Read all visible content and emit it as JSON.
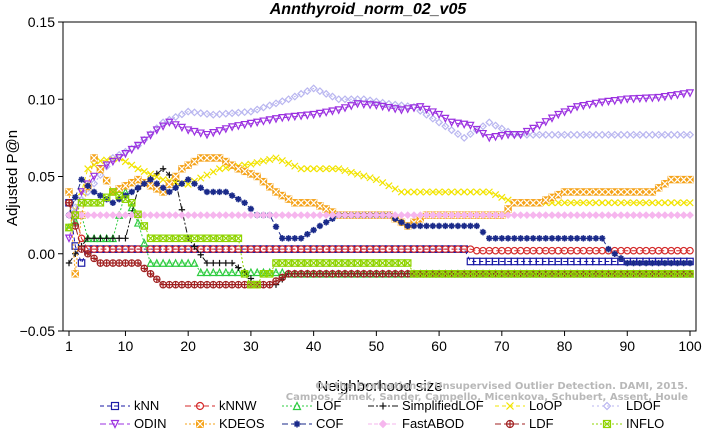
{
  "chart_data": {
    "type": "line",
    "title": "Annthyroid_norm_02_v05",
    "xlabel": "Neighborhood size",
    "ylabel": "Adjusted P@n",
    "xlim": [
      0,
      100
    ],
    "ylim": [
      -0.05,
      0.15
    ],
    "xticks": [
      1,
      10,
      20,
      30,
      40,
      50,
      60,
      70,
      80,
      90,
      100
    ],
    "yticks": [
      -0.05,
      0.0,
      0.05,
      0.1,
      0.15
    ],
    "ytick_labels": [
      "−0.05",
      "0.00",
      "0.05",
      "0.10",
      "0.15"
    ],
    "grid": false,
    "legend_position": "bottom",
    "watermark": "Campos, Zimek, Sander, Campello, Micenkova, Schubert, Assent, Houle\nOn the Evaluation of Unsupervised Outlier Detection. DAMI, 2015.",
    "series": [
      {
        "name": "kNN",
        "color": "#1a1aa6",
        "marker": "square",
        "dash": "4,3",
        "points": [
          [
            1,
            0.033
          ],
          [
            2,
            0.005
          ],
          [
            3,
            -0.006
          ],
          [
            4,
            0.003
          ],
          [
            64,
            0.003
          ],
          [
            65,
            -0.005
          ],
          [
            100,
            -0.005
          ]
        ]
      },
      {
        "name": "kNNW",
        "color": "#d42a2a",
        "marker": "circle",
        "dash": "6,3",
        "points": [
          [
            1,
            0.033
          ],
          [
            2,
            0.025
          ],
          [
            3,
            0.01
          ],
          [
            4,
            0.003
          ],
          [
            65,
            0.003
          ],
          [
            66,
            0.002
          ],
          [
            100,
            0.002
          ]
        ]
      },
      {
        "name": "LOF",
        "color": "#2ecc40",
        "marker": "triangle",
        "dash": "2,2",
        "points": [
          [
            1,
            0.017
          ],
          [
            3,
            0.025
          ],
          [
            4,
            0.01
          ],
          [
            8,
            0.01
          ],
          [
            10,
            0.04
          ],
          [
            12,
            0.02
          ],
          [
            14,
            -0.006
          ],
          [
            21,
            -0.006
          ],
          [
            22,
            -0.012
          ],
          [
            30,
            -0.012
          ],
          [
            35,
            -0.012
          ],
          [
            36,
            -0.013
          ],
          [
            88,
            -0.013
          ],
          [
            90,
            -0.013
          ],
          [
            100,
            -0.013
          ]
        ]
      },
      {
        "name": "SimplifiedLOF",
        "color": "#111111",
        "marker": "plus",
        "dash": "6,2,2,2",
        "points": [
          [
            1,
            -0.006
          ],
          [
            2,
            0.0
          ],
          [
            3,
            0.005
          ],
          [
            4,
            0.01
          ],
          [
            10,
            0.01
          ],
          [
            12,
            0.042
          ],
          [
            16,
            0.055
          ],
          [
            18,
            0.047
          ],
          [
            20,
            0.01
          ],
          [
            23,
            -0.006
          ],
          [
            27,
            -0.006
          ],
          [
            29,
            -0.012
          ],
          [
            31,
            -0.02
          ],
          [
            34,
            -0.02
          ],
          [
            36,
            -0.013
          ],
          [
            100,
            -0.013
          ]
        ]
      },
      {
        "name": "LoOP",
        "color": "#f2e400",
        "marker": "x",
        "dash": "4,3",
        "points": [
          [
            1,
            0.017
          ],
          [
            3,
            0.04
          ],
          [
            4,
            0.055
          ],
          [
            6,
            0.06
          ],
          [
            9,
            0.062
          ],
          [
            12,
            0.055
          ],
          [
            16,
            0.048
          ],
          [
            20,
            0.045
          ],
          [
            25,
            0.055
          ],
          [
            30,
            0.058
          ],
          [
            34,
            0.062
          ],
          [
            38,
            0.055
          ],
          [
            44,
            0.055
          ],
          [
            50,
            0.048
          ],
          [
            54,
            0.04
          ],
          [
            68,
            0.04
          ],
          [
            72,
            0.033
          ],
          [
            100,
            0.033
          ]
        ]
      },
      {
        "name": "LDOF",
        "color": "#b9b6f0",
        "marker": "diamond",
        "dash": "2,3",
        "points": [
          [
            1,
            0.025
          ],
          [
            4,
            0.04
          ],
          [
            8,
            0.062
          ],
          [
            12,
            0.07
          ],
          [
            16,
            0.085
          ],
          [
            20,
            0.092
          ],
          [
            24,
            0.09
          ],
          [
            30,
            0.092
          ],
          [
            36,
            0.1
          ],
          [
            40,
            0.107
          ],
          [
            44,
            0.1
          ],
          [
            48,
            0.1
          ],
          [
            52,
            0.097
          ],
          [
            56,
            0.095
          ],
          [
            60,
            0.085
          ],
          [
            64,
            0.075
          ],
          [
            68,
            0.085
          ],
          [
            72,
            0.077
          ],
          [
            80,
            0.077
          ],
          [
            90,
            0.077
          ],
          [
            100,
            0.077
          ]
        ]
      },
      {
        "name": "ODIN",
        "color": "#9b30e0",
        "marker": "triangle-down",
        "dash": "6,3",
        "points": [
          [
            1,
            0.01
          ],
          [
            3,
            0.04
          ],
          [
            6,
            0.055
          ],
          [
            9,
            0.062
          ],
          [
            12,
            0.07
          ],
          [
            15,
            0.08
          ],
          [
            17,
            0.085
          ],
          [
            20,
            0.08
          ],
          [
            23,
            0.077
          ],
          [
            27,
            0.082
          ],
          [
            31,
            0.085
          ],
          [
            35,
            0.088
          ],
          [
            40,
            0.09
          ],
          [
            44,
            0.093
          ],
          [
            47,
            0.097
          ],
          [
            50,
            0.096
          ],
          [
            54,
            0.093
          ],
          [
            57,
            0.095
          ],
          [
            60,
            0.09
          ],
          [
            62,
            0.085
          ],
          [
            65,
            0.083
          ],
          [
            68,
            0.075
          ],
          [
            71,
            0.077
          ],
          [
            73,
            0.077
          ],
          [
            76,
            0.083
          ],
          [
            79,
            0.09
          ],
          [
            82,
            0.095
          ],
          [
            86,
            0.098
          ],
          [
            90,
            0.1
          ],
          [
            95,
            0.101
          ],
          [
            100,
            0.104
          ]
        ]
      },
      {
        "name": "KDEOS",
        "color": "#f5a31a",
        "marker": "square-x",
        "dash": "2,2",
        "points": [
          [
            1,
            0.04
          ],
          [
            2,
            -0.013
          ],
          [
            3,
            0.025
          ],
          [
            5,
            0.062
          ],
          [
            8,
            0.04
          ],
          [
            12,
            0.048
          ],
          [
            16,
            0.04
          ],
          [
            19,
            0.055
          ],
          [
            22,
            0.062
          ],
          [
            25,
            0.062
          ],
          [
            28,
            0.055
          ],
          [
            31,
            0.05
          ],
          [
            34,
            0.04
          ],
          [
            37,
            0.033
          ],
          [
            40,
            0.033
          ],
          [
            44,
            0.025
          ],
          [
            48,
            0.025
          ],
          [
            52,
            0.025
          ],
          [
            55,
            0.018
          ],
          [
            58,
            0.025
          ],
          [
            62,
            0.025
          ],
          [
            66,
            0.025
          ],
          [
            70,
            0.025
          ],
          [
            72,
            0.033
          ],
          [
            76,
            0.033
          ],
          [
            80,
            0.04
          ],
          [
            86,
            0.04
          ],
          [
            90,
            0.04
          ],
          [
            94,
            0.04
          ],
          [
            97,
            0.048
          ],
          [
            100,
            0.048
          ]
        ]
      },
      {
        "name": "COF",
        "color": "#1a2a8a",
        "marker": "asterisk",
        "dash": "6,3",
        "points": [
          [
            1,
            0.025
          ],
          [
            3,
            0.048
          ],
          [
            5,
            0.04
          ],
          [
            8,
            0.033
          ],
          [
            11,
            0.04
          ],
          [
            14,
            0.048
          ],
          [
            17,
            0.04
          ],
          [
            20,
            0.048
          ],
          [
            23,
            0.04
          ],
          [
            26,
            0.04
          ],
          [
            29,
            0.033
          ],
          [
            31,
            0.025
          ],
          [
            33,
            0.025
          ],
          [
            35,
            0.01
          ],
          [
            38,
            0.01
          ],
          [
            41,
            0.018
          ],
          [
            44,
            0.025
          ],
          [
            48,
            0.025
          ],
          [
            52,
            0.025
          ],
          [
            55,
            0.018
          ],
          [
            62,
            0.018
          ],
          [
            66,
            0.018
          ],
          [
            68,
            0.01
          ],
          [
            74,
            0.01
          ],
          [
            78,
            0.01
          ],
          [
            82,
            0.01
          ],
          [
            86,
            0.01
          ],
          [
            87,
            0.003
          ],
          [
            90,
            -0.006
          ],
          [
            100,
            -0.006
          ]
        ]
      },
      {
        "name": "FastABOD",
        "color": "#f6b6ee",
        "marker": "diamond-filled",
        "dash": "4,2",
        "points": [
          [
            1,
            0.025
          ],
          [
            100,
            0.025
          ]
        ]
      },
      {
        "name": "LDF",
        "color": "#a02020",
        "marker": "circle-plus",
        "dash": "6,3",
        "points": [
          [
            1,
            0.033
          ],
          [
            3,
            0.003
          ],
          [
            6,
            -0.006
          ],
          [
            12,
            -0.006
          ],
          [
            14,
            -0.013
          ],
          [
            16,
            -0.02
          ],
          [
            30,
            -0.02
          ],
          [
            33,
            -0.02
          ],
          [
            36,
            -0.013
          ],
          [
            74,
            -0.013
          ],
          [
            78,
            -0.013
          ],
          [
            85,
            -0.013
          ],
          [
            100,
            -0.013
          ]
        ]
      },
      {
        "name": "INFLO",
        "color": "#8fd400",
        "marker": "square-cross",
        "dash": "2,2",
        "points": [
          [
            1,
            0.017
          ],
          [
            3,
            0.033
          ],
          [
            6,
            0.033
          ],
          [
            8,
            0.04
          ],
          [
            11,
            0.033
          ],
          [
            13,
            0.018
          ],
          [
            14,
            0.01
          ],
          [
            20,
            0.01
          ],
          [
            28,
            0.01
          ],
          [
            29,
            -0.013
          ],
          [
            30,
            -0.02
          ],
          [
            31,
            -0.02
          ],
          [
            32,
            -0.013
          ],
          [
            33,
            -0.013
          ],
          [
            34,
            -0.006
          ],
          [
            55,
            -0.006
          ],
          [
            56,
            -0.013
          ],
          [
            72,
            -0.013
          ],
          [
            73,
            -0.013
          ],
          [
            88,
            -0.013
          ],
          [
            100,
            -0.013
          ]
        ]
      }
    ]
  }
}
